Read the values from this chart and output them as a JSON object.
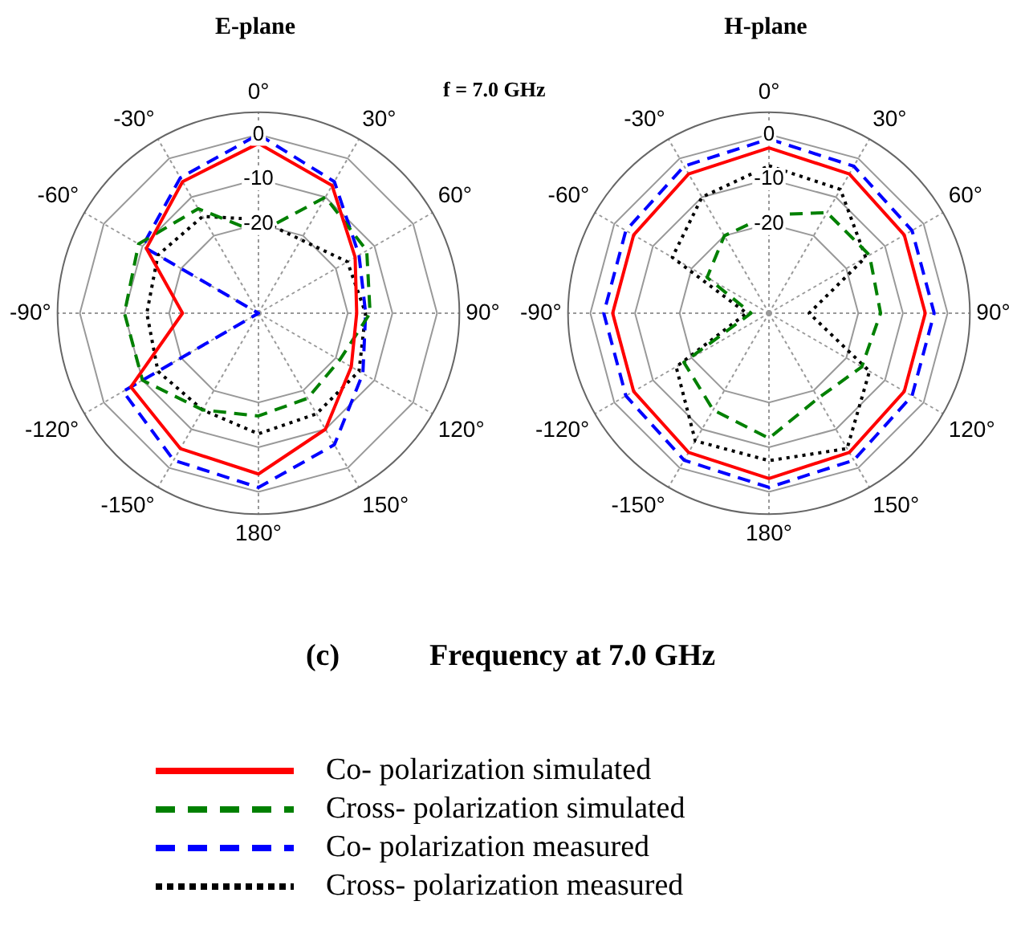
{
  "chart_data": [
    {
      "type": "radar",
      "title": "E-plane",
      "categories": [
        "0°",
        "30°",
        "60°",
        "90°",
        "120°",
        "150°",
        "180°",
        "-150°",
        "-120°",
        "-90°",
        "-60°",
        "-30°"
      ],
      "ylim": [
        -40,
        5
      ],
      "yticks": [
        -20,
        -10,
        0
      ],
      "grid": true,
      "legend": "bottom",
      "annotations": [
        "f = 7.0 GHz",
        "(c)",
        "Frequency at 7.0 GHz"
      ],
      "series": [
        {
          "name": "Co- polarization simulated",
          "color": "#ff0000",
          "line_style": "solid",
          "values": [
            -2,
            -7,
            -15,
            -18,
            -16,
            -10,
            -4,
            -5,
            -7,
            -23,
            -11,
            -6
          ]
        },
        {
          "name": "Cross- polarization simulated",
          "color": "#008000",
          "line_style": "dashed",
          "values": [
            -22,
            -10,
            -12,
            -15,
            -19,
            -18,
            -17,
            -15,
            -10,
            -10,
            -9,
            -13
          ]
        },
        {
          "name": "Co- polarization measured",
          "color": "#0000ff",
          "line_style": "dashed",
          "values": [
            0,
            -6,
            -14,
            -16,
            -13,
            -6,
            -1,
            -2,
            -5,
            -40,
            -10,
            -5
          ]
        },
        {
          "name": "Cross- polarization measured",
          "color": "#000000",
          "line_style": "dotted",
          "values": [
            -19,
            -21,
            -17,
            -16,
            -14,
            -14,
            -13,
            -15,
            -14,
            -15,
            -14,
            -15
          ]
        }
      ]
    },
    {
      "type": "radar",
      "title": "H-plane",
      "categories": [
        "0°",
        "30°",
        "60°",
        "90°",
        "120°",
        "150°",
        "180°",
        "-150°",
        "-120°",
        "-90°",
        "-60°",
        "-30°"
      ],
      "ylim": [
        -40,
        5
      ],
      "yticks": [
        -20,
        -10,
        0
      ],
      "grid": true,
      "legend": false,
      "series": [
        {
          "color": "#ff0000",
          "line_style": "solid",
          "values": [
            -3,
            -4,
            -5,
            -5,
            -5,
            -4,
            -3,
            -4,
            -5,
            -5,
            -5,
            -4
          ]
        },
        {
          "color": "#008000",
          "line_style": "dashed",
          "values": [
            -18,
            -14,
            -14,
            -15,
            -16,
            -18,
            -12,
            -15,
            -18,
            -36,
            -24,
            -20
          ]
        },
        {
          "color": "#0000ff",
          "line_style": "dashed",
          "values": [
            -1,
            -2,
            -3,
            -3,
            -3,
            -2,
            -1,
            -2,
            -3,
            -3,
            -3,
            -2
          ]
        },
        {
          "color": "#000000",
          "line_style": "dotted",
          "values": [
            -7,
            -8,
            -15,
            -31,
            -14,
            -5,
            -7,
            -7,
            -16,
            -35,
            -15,
            -10
          ]
        }
      ]
    }
  ]
}
